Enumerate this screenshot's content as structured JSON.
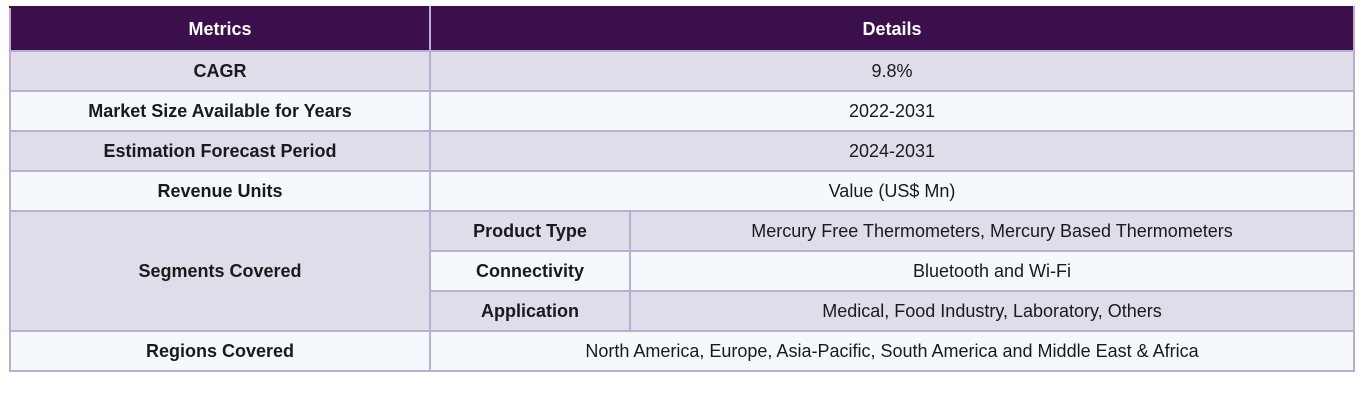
{
  "header": {
    "metrics": "Metrics",
    "details": "Details"
  },
  "rows": {
    "cagr": {
      "label": "CAGR",
      "value": "9.8%"
    },
    "market_size": {
      "label": "Market Size Available for Years",
      "value": "2022-2031"
    },
    "forecast": {
      "label": "Estimation Forecast Period",
      "value": "2024-2031"
    },
    "revenue_units": {
      "label": "Revenue Units",
      "value": "Value (US$ Mn)"
    },
    "segments": {
      "label": "Segments Covered",
      "items": [
        {
          "name": "Product Type",
          "value": "Mercury Free Thermometers, Mercury Based Thermometers"
        },
        {
          "name": "Connectivity",
          "value": "Bluetooth and Wi-Fi"
        },
        {
          "name": "Application",
          "value": "Medical, Food Industry, Laboratory, Others"
        }
      ]
    },
    "regions": {
      "label": "Regions Covered",
      "value": "North America, Europe, Asia-Pacific, South America and Middle East & Africa"
    }
  },
  "colors": {
    "header_bg": "#3a0f4b",
    "shaded_row": "#e0dcea",
    "light_row": "#f5f9fc",
    "border": "#b7aed3"
  }
}
